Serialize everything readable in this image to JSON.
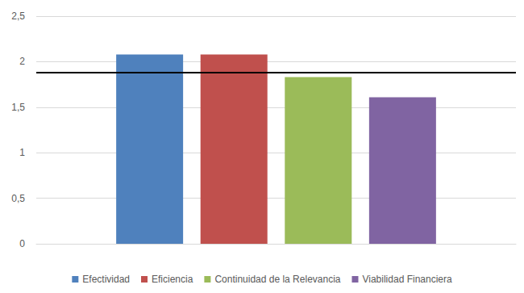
{
  "chart_data": {
    "type": "bar",
    "categories": [
      null
    ],
    "series": [
      {
        "name": "Efectividad",
        "color": "#4f81bd",
        "values": [
          2.08
        ]
      },
      {
        "name": "Eficiencia",
        "color": "#c0504d",
        "values": [
          2.08
        ]
      },
      {
        "name": "Continuidad de la Relevancia",
        "color": "#9bbb59",
        "values": [
          1.83
        ]
      },
      {
        "name": "Viabilidad Financiera",
        "color": "#8064a2",
        "values": [
          1.61
        ]
      }
    ],
    "reference_line": 1.88,
    "ylim": [
      0,
      2.5
    ],
    "yticks": [
      0,
      {
        "value": 0.5,
        "label": "0,5"
      },
      1,
      {
        "value": 1.5,
        "label": "1,5"
      },
      2,
      {
        "value": 2.5,
        "label": "2,5"
      }
    ],
    "grid": true,
    "legend": "bottom"
  }
}
